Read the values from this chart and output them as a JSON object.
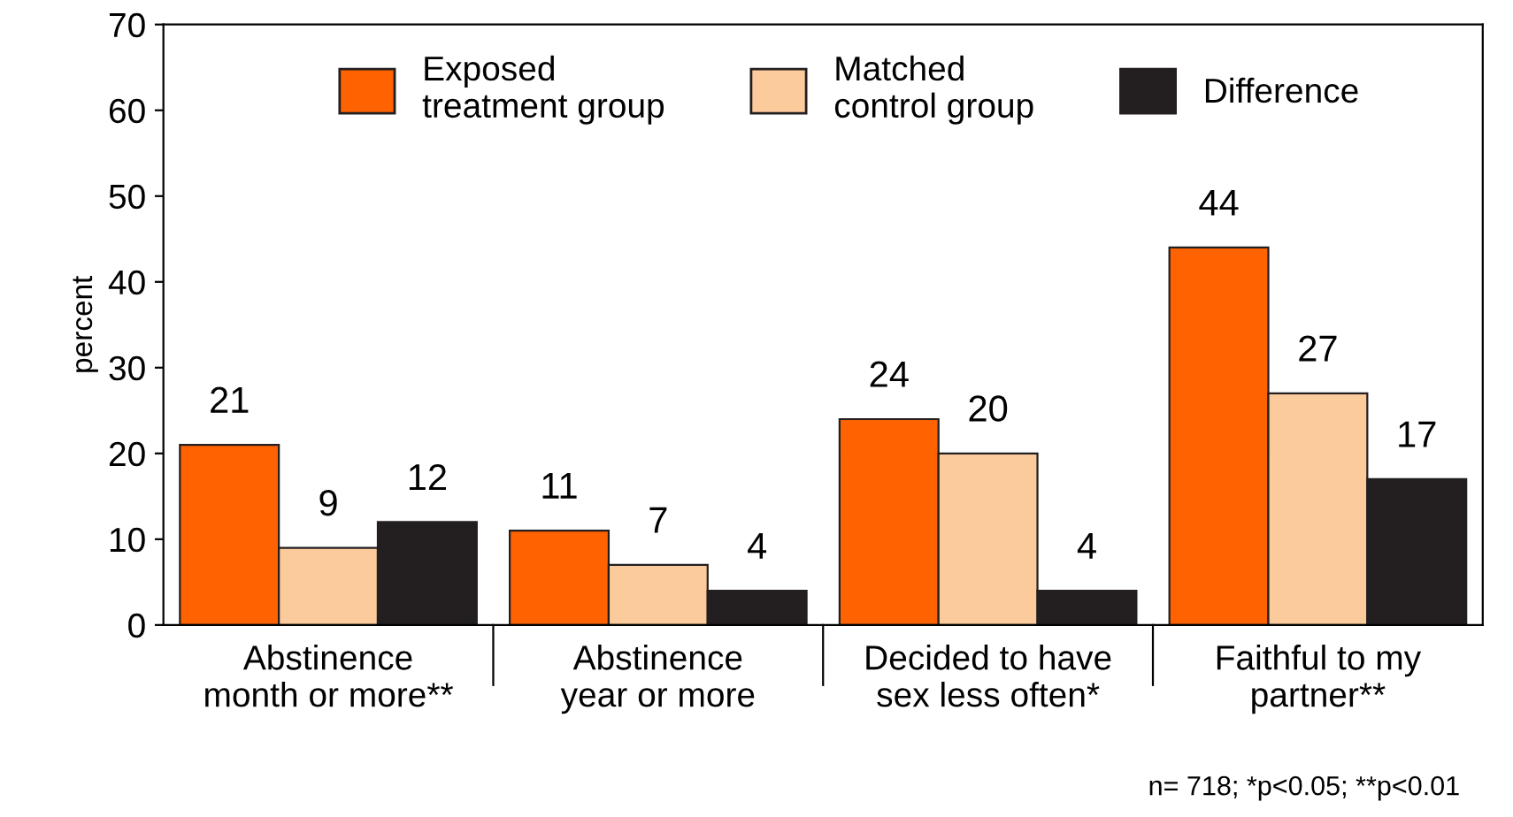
{
  "chart_data": {
    "type": "bar",
    "ylabel": "percent",
    "categories": [
      "Abstinence\nmonth or more**",
      "Abstinence\nyear or more",
      "Decided to have\nsex less often*",
      "Faithful to my\npartner**"
    ],
    "series": [
      {
        "name": "Exposed\ntreatment group",
        "color": "#ff6200",
        "values": [
          21,
          11,
          24,
          44
        ]
      },
      {
        "name": "Matched\ncontrol group",
        "color": "#fccb9b",
        "values": [
          9,
          7,
          20,
          27
        ]
      },
      {
        "name": "Difference",
        "color": "#231f20",
        "values": [
          12,
          4,
          4,
          17
        ]
      }
    ],
    "ylim": [
      0,
      70
    ],
    "yticks": [
      0,
      10,
      20,
      30,
      40,
      50,
      60,
      70
    ],
    "grid": false,
    "legend": "top",
    "data_labels": true,
    "annotations": [
      "n= 718; *p<0.05; **p<0.01"
    ]
  }
}
